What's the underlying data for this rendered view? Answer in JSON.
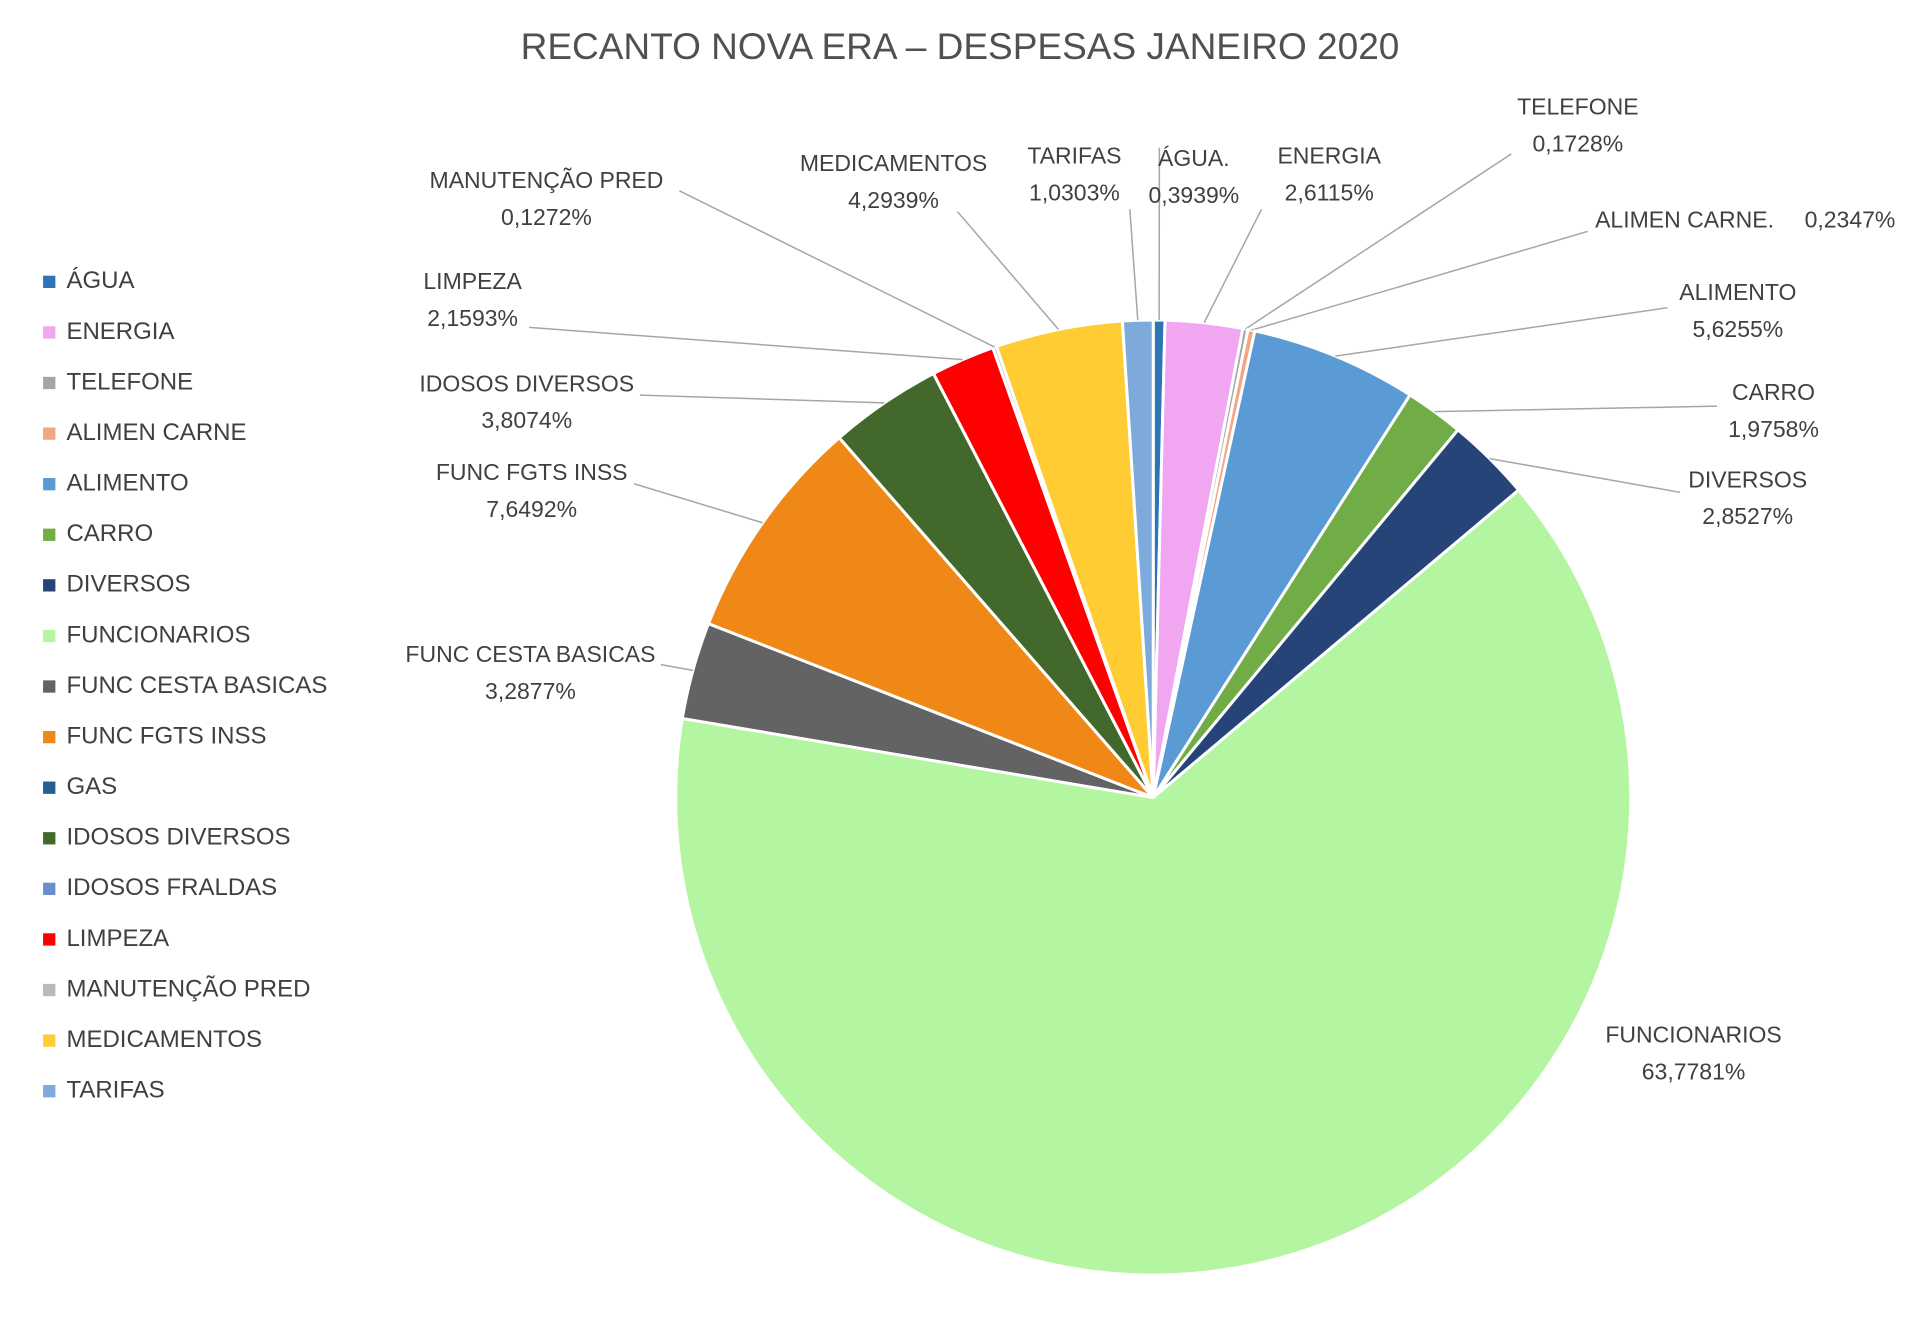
{
  "chart_data": {
    "type": "pie",
    "title": "RECANTO NOVA ERA – DESPESAS JANEIRO 2020",
    "categories": [
      "ÁGUA",
      "ENERGIA",
      "TELEFONE",
      "ALIMEN CARNE",
      "ALIMENTO",
      "CARRO",
      "DIVERSOS",
      "FUNCIONARIOS",
      "FUNC CESTA BASICAS",
      "FUNC FGTS INSS",
      "GAS",
      "IDOSOS DIVERSOS",
      "IDOSOS FRALDAS",
      "LIMPEZA",
      "MANUTENÇÃO PRED",
      "MEDICAMENTOS",
      "TARIFAS"
    ],
    "values": [
      0.3939,
      2.6115,
      0.1728,
      0.2347,
      5.6255,
      1.9758,
      2.8527,
      63.7781,
      3.2877,
      7.6492,
      0,
      3.8074,
      0,
      2.1593,
      0.1272,
      4.2939,
      1.0303
    ],
    "value_labels": [
      "0,3939%",
      "2,6115%",
      "0,1728%",
      "0,2347%",
      "5,6255%",
      "1,9758%",
      "2,8527%",
      "63,7781%",
      "3,2877%",
      "7,6492%",
      null,
      "3,8074%",
      null,
      "2,1593%",
      "0,1272%",
      "4,2939%",
      "1,0303%"
    ],
    "label_names": [
      "ÁGUA.",
      "ENERGIA",
      "TELEFONE",
      "ALIMEN CARNE.",
      "ALIMENTO",
      "CARRO",
      "DIVERSOS",
      "FUNCIONARIOS",
      "FUNC CESTA BASICAS",
      "FUNC FGTS INSS",
      null,
      "IDOSOS DIVERSOS",
      null,
      "LIMPEZA",
      "MANUTENÇÃO PRED",
      "MEDICAMENTOS",
      "TARIFAS"
    ],
    "colors": [
      "#2e75b6",
      "#f0a6f0",
      "#a5a5a5",
      "#f4a582",
      "#5b9bd5",
      "#70ad47",
      "#264478",
      "#b4f5a2",
      "#636363",
      "#ef8816",
      "#255e91",
      "#43682b",
      "#698ed0",
      "#ff0000",
      "#b9b9b9",
      "#ffcc33",
      "#7eaadb"
    ]
  }
}
